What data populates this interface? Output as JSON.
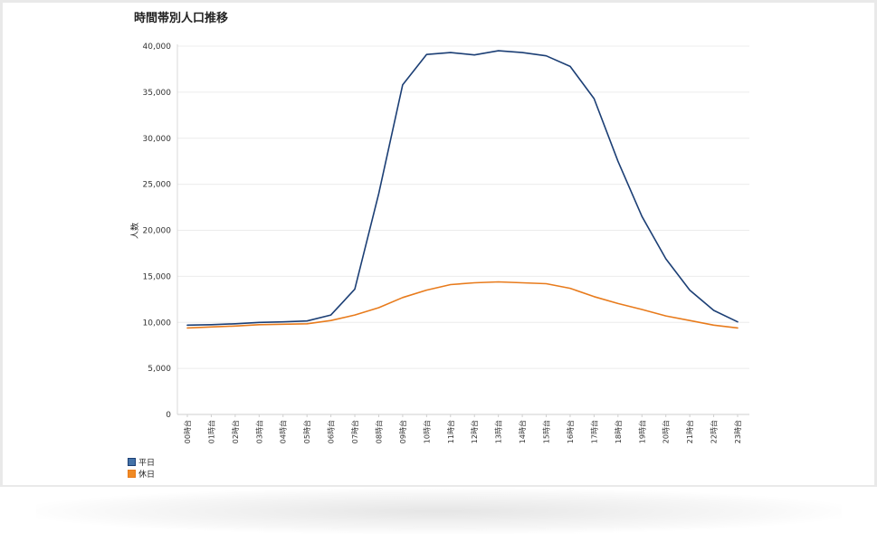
{
  "chart_data": {
    "type": "line",
    "title": "時間帯別人口推移",
    "xlabel": "",
    "ylabel": "人数",
    "ylim": [
      0,
      40000
    ],
    "yticks": [
      0,
      5000,
      10000,
      15000,
      20000,
      25000,
      30000,
      35000,
      40000
    ],
    "ytick_labels": [
      "0",
      "5,000",
      "10,000",
      "15,000",
      "20,000",
      "25,000",
      "30,000",
      "35,000",
      "40,000"
    ],
    "grid": true,
    "legend_position": "bottom-left",
    "categories": [
      "00時台",
      "01時台",
      "02時台",
      "03時台",
      "04時台",
      "05時台",
      "06時台",
      "07時台",
      "08時台",
      "09時台",
      "10時台",
      "11時台",
      "12時台",
      "13時台",
      "14時台",
      "15時台",
      "16時台",
      "17時台",
      "18時台",
      "19時台",
      "20時台",
      "21時台",
      "22時台",
      "23時台"
    ],
    "series": [
      {
        "name": "平日",
        "color": "#1c3f75",
        "values": [
          9700,
          9750,
          9850,
          10000,
          10050,
          10150,
          10800,
          13600,
          24000,
          35800,
          39100,
          39300,
          39050,
          39500,
          39300,
          38950,
          37800,
          34300,
          27500,
          21500,
          16900,
          13500,
          11300,
          10050
        ]
      },
      {
        "name": "休日",
        "color": "#e87b1c",
        "values": [
          9400,
          9500,
          9600,
          9750,
          9800,
          9850,
          10200,
          10800,
          11600,
          12700,
          13500,
          14100,
          14300,
          14400,
          14300,
          14200,
          13700,
          12800,
          12050,
          11400,
          10700,
          10200,
          9700,
          9400
        ]
      }
    ]
  },
  "legend_swatch_colors": [
    "#4472a8",
    "#f08a24"
  ]
}
